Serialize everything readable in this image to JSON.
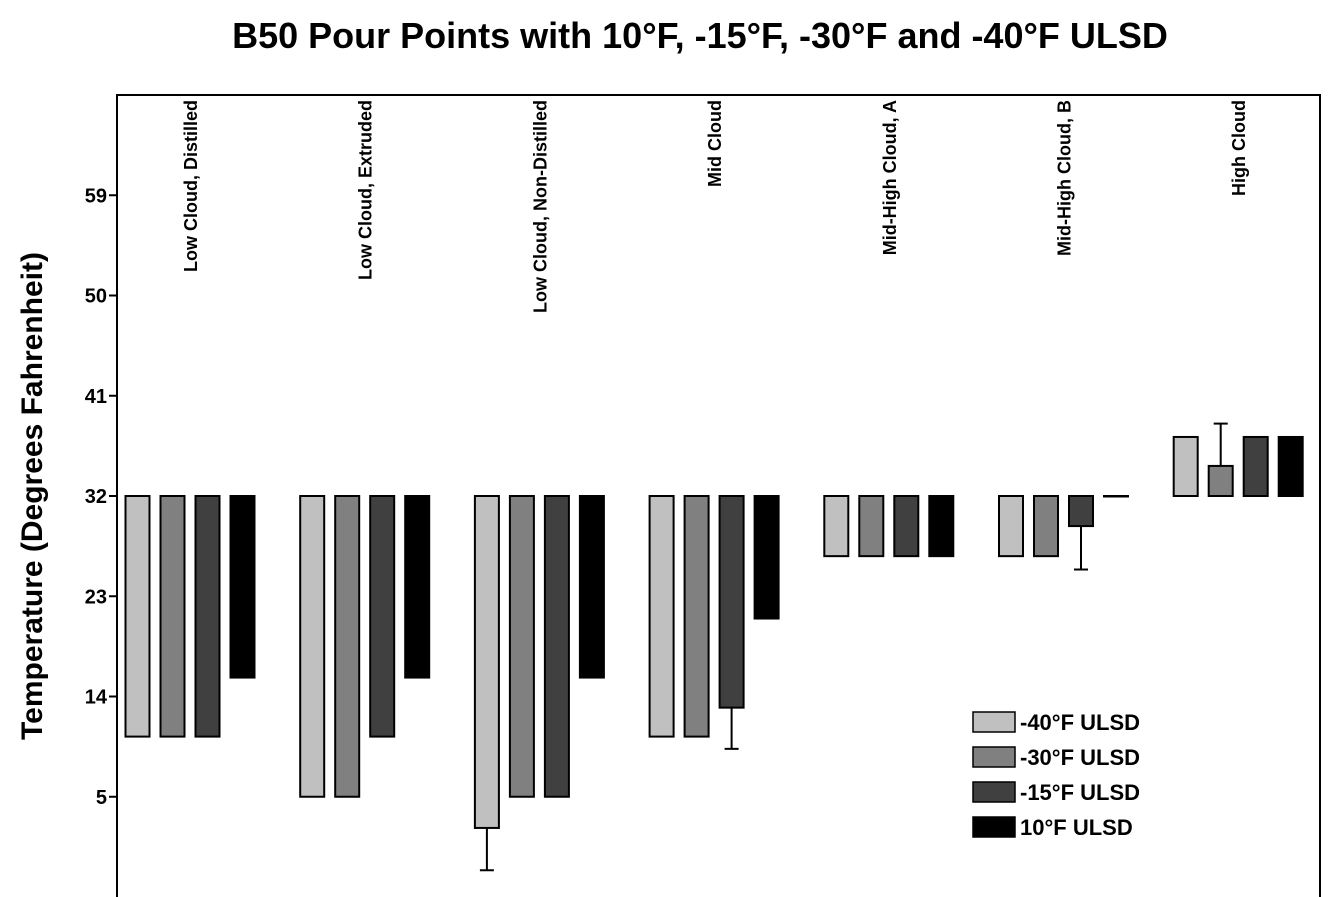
{
  "chart_data": {
    "type": "floating-bar",
    "title": "B50 Pour Points with 10°F, -15°F, -30°F and -40°F ULSD",
    "y_label": "Temperature (Degrees Fahrenheit)",
    "baseline": 32,
    "categories": [
      "Low Cloud, Distilled",
      "Low Cloud, Extruded",
      "Low Cloud, Non-Distilled",
      "Mid Cloud",
      "Mid-High Cloud, A",
      "Mid-High Cloud, B",
      "High Cloud"
    ],
    "series": [
      {
        "name": "-40°F ULSD",
        "color": "#c0c0c0",
        "values": [
          10.4,
          5,
          2.2,
          10.4,
          26.6,
          26.6,
          37.3
        ],
        "errors": [
          null,
          null,
          3.8,
          null,
          null,
          null,
          null
        ]
      },
      {
        "name": "-30°F ULSD",
        "color": "#808080",
        "values": [
          10.4,
          5,
          5,
          10.4,
          26.6,
          26.6,
          34.7
        ],
        "errors": [
          null,
          null,
          null,
          null,
          null,
          null,
          3.8
        ]
      },
      {
        "name": "-15°F ULSD",
        "color": "#404040",
        "values": [
          10.4,
          10.4,
          5,
          13,
          26.6,
          29.3,
          37.3
        ],
        "errors": [
          null,
          null,
          null,
          3.7,
          null,
          3.9,
          null
        ]
      },
      {
        "name": "10°F ULSD",
        "color": "#000000",
        "values": [
          15.7,
          15.7,
          15.7,
          21,
          26.6,
          32,
          37.3
        ],
        "errors": [
          null,
          null,
          null,
          null,
          null,
          null,
          null
        ]
      }
    ],
    "ylim": [
      -4,
      68
    ],
    "yticks": [
      5,
      14,
      23,
      32,
      41,
      50,
      59
    ]
  }
}
